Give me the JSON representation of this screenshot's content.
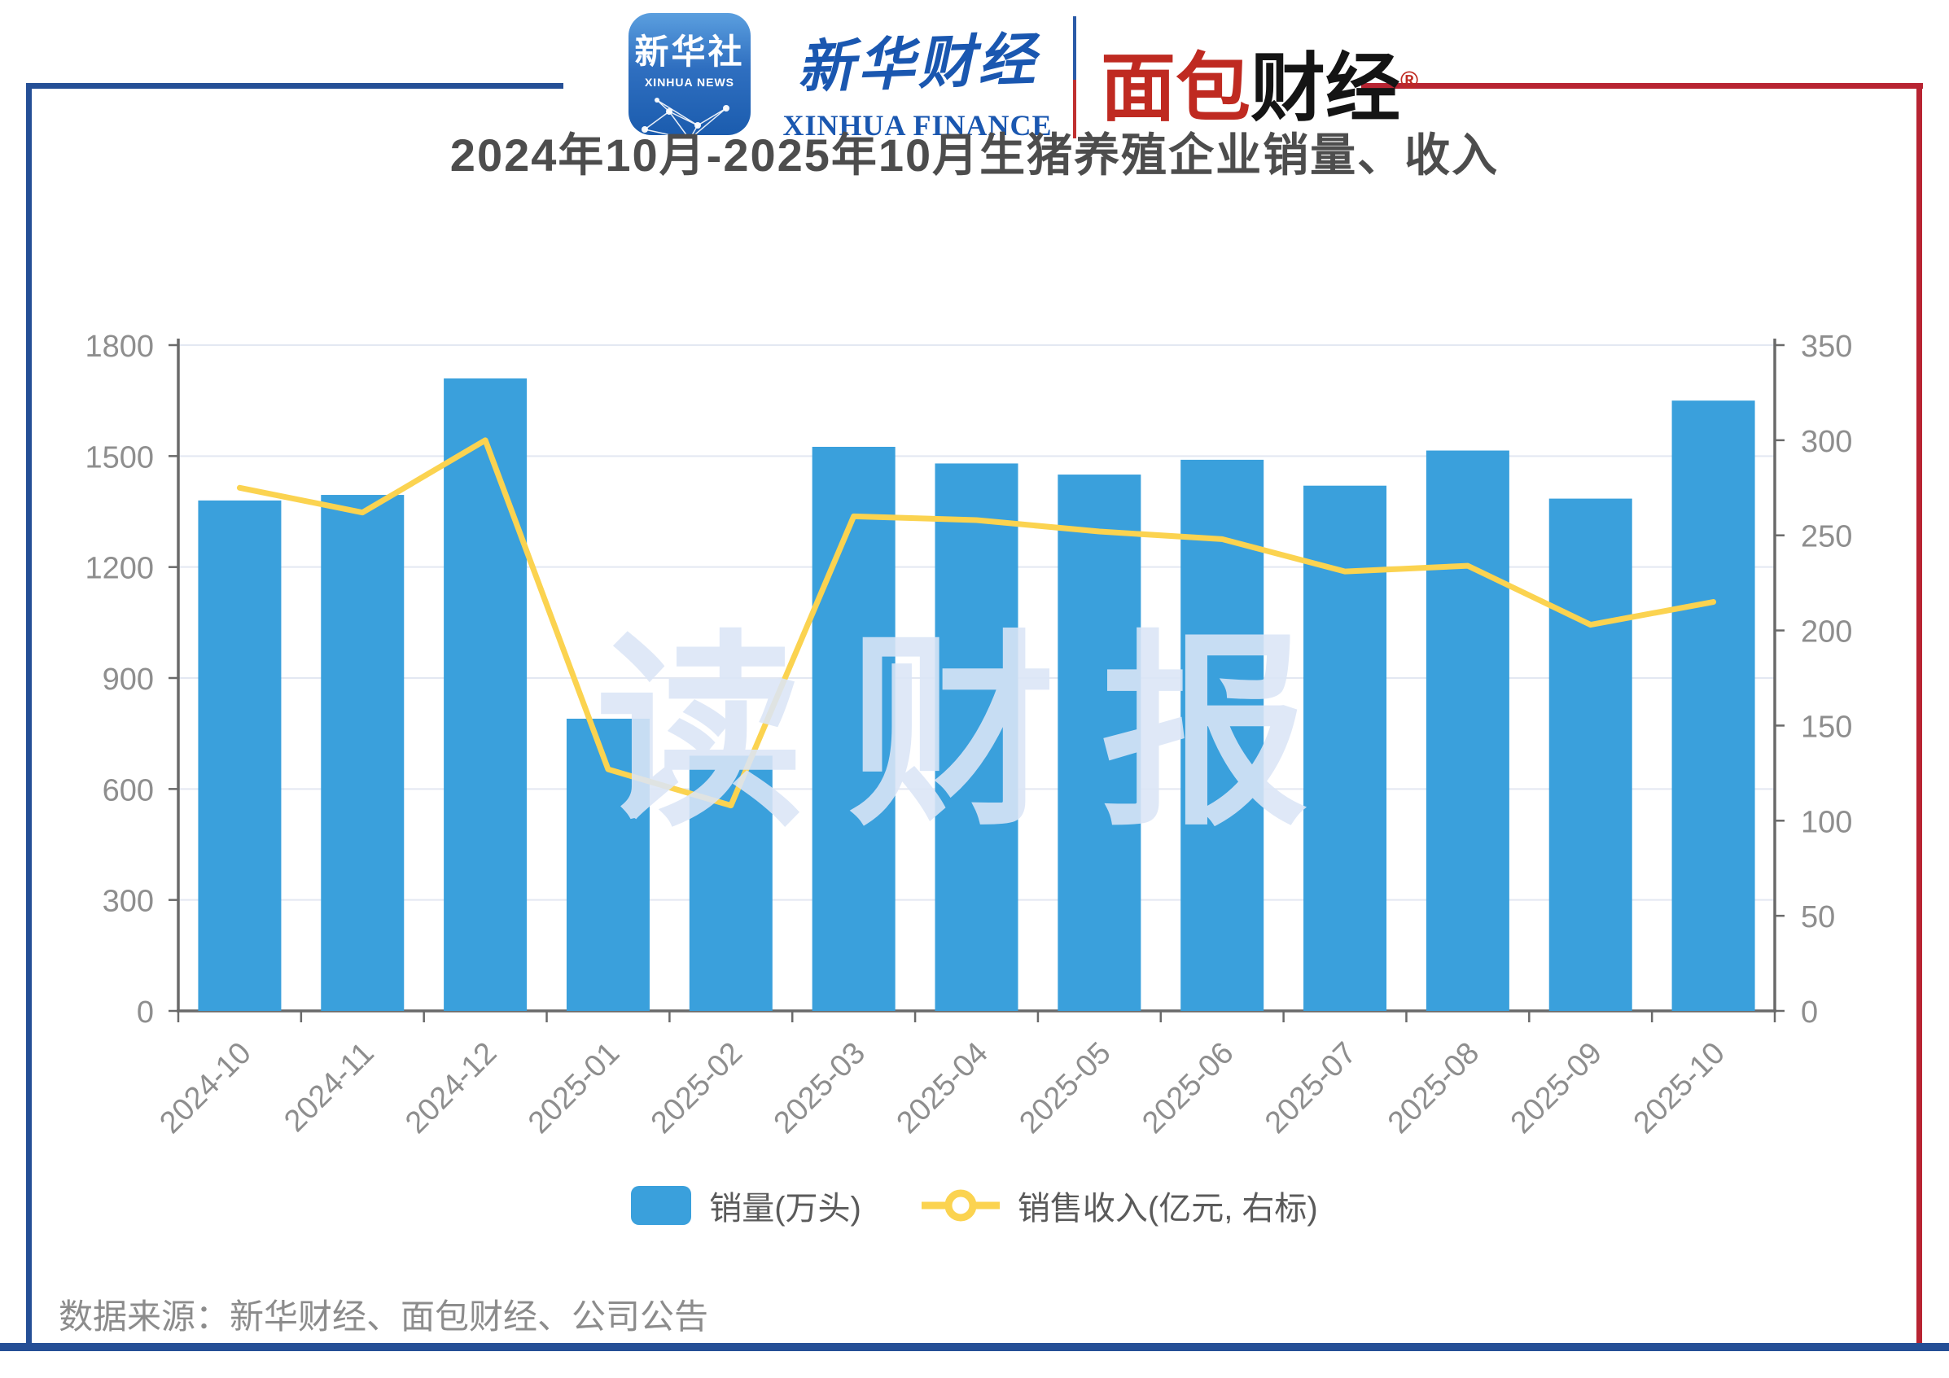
{
  "header": {
    "xinhua_news_icon": {
      "cn": "新华社",
      "en": "XINHUA NEWS"
    },
    "xinhua_finance": {
      "cn": "新华财经",
      "en": "XINHUA FINANCE"
    },
    "mianbao": {
      "cn_red": "面包",
      "cn_black": "财经",
      "reg": "®"
    }
  },
  "title": "2024年10月-2025年10月生猪养殖企业销量、收入",
  "watermark": "读财报",
  "legend": {
    "items": [
      {
        "type": "bar",
        "label": "销量(万头)"
      },
      {
        "type": "line",
        "label": "销售收入(亿元, 右标)"
      }
    ]
  },
  "footer": "数据来源：新华财经、面包财经、公司公告",
  "colors": {
    "bar": "#3aa0dc",
    "line": "#fbd350",
    "grid": "#e3e8f2",
    "axis": "#6a6a6a",
    "tick_text": "#8e8e8e",
    "frame_blue": "#254f96",
    "frame_red": "#b82432",
    "logo_blue": "#1a57b0",
    "logo_red": "#bf2a21"
  },
  "chart_data": {
    "type": "bar+line",
    "title": "2024年10月-2025年10月生猪养殖企业销量、收入",
    "categories": [
      "2024-10",
      "2024-11",
      "2024-12",
      "2025-01",
      "2025-02",
      "2025-03",
      "2025-04",
      "2025-05",
      "2025-06",
      "2025-07",
      "2025-08",
      "2025-09",
      "2025-10"
    ],
    "series": [
      {
        "name": "销量(万头)",
        "type": "bar",
        "axis": "left",
        "values": [
          1380,
          1395,
          1710,
          790,
          690,
          1525,
          1480,
          1450,
          1490,
          1420,
          1515,
          1385,
          1650
        ]
      },
      {
        "name": "销售收入(亿元, 右标)",
        "type": "line",
        "axis": "right",
        "values": [
          275,
          262,
          300,
          127,
          108,
          260,
          258,
          252,
          248,
          231,
          234,
          203,
          215
        ]
      }
    ],
    "left_axis": {
      "min": 0,
      "max": 1800,
      "step": 300
    },
    "right_axis": {
      "min": 0,
      "max": 350,
      "step": 50
    },
    "grid": true,
    "legend_position": "bottom"
  }
}
